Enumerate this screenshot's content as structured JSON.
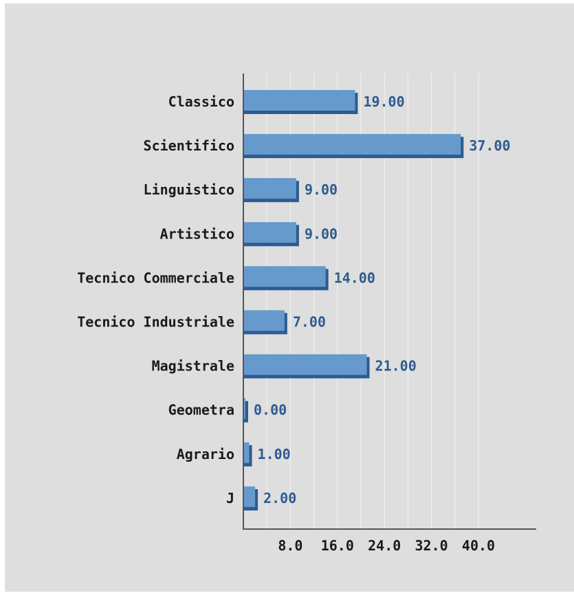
{
  "chart_data": {
    "type": "bar",
    "orientation": "horizontal",
    "categories": [
      "Classico",
      "Scientifico",
      "Linguistico",
      "Artistico",
      "Tecnico Commerciale",
      "Tecnico Industriale",
      "Magistrale",
      "Geometra",
      "Agrario",
      "J"
    ],
    "values": [
      19,
      37,
      9,
      9,
      14,
      7,
      21,
      0,
      1,
      2
    ],
    "value_labels": [
      "19.00",
      "37.00",
      "9.00",
      "9.00",
      "14.00",
      "7.00",
      "21.00",
      "0.00",
      "1.00",
      "2.00"
    ],
    "xlim": [
      0,
      48
    ],
    "x_ticks": [
      8,
      16,
      24,
      32,
      40
    ],
    "x_tick_labels": [
      "8.0",
      "16.0",
      "24.0",
      "32.0",
      "40.0"
    ],
    "gridlines": [
      4,
      8,
      12,
      16,
      20,
      24,
      28,
      32,
      36,
      40
    ],
    "grid": true,
    "title": "",
    "xlabel": "",
    "ylabel": "",
    "colors": {
      "background": "#dedede",
      "bar_fill": "#6699cc",
      "bar_shadow": "#2d5b91",
      "value_text": "#2d5b91",
      "axis": "#555555",
      "grid": "#f4f4f4"
    }
  }
}
